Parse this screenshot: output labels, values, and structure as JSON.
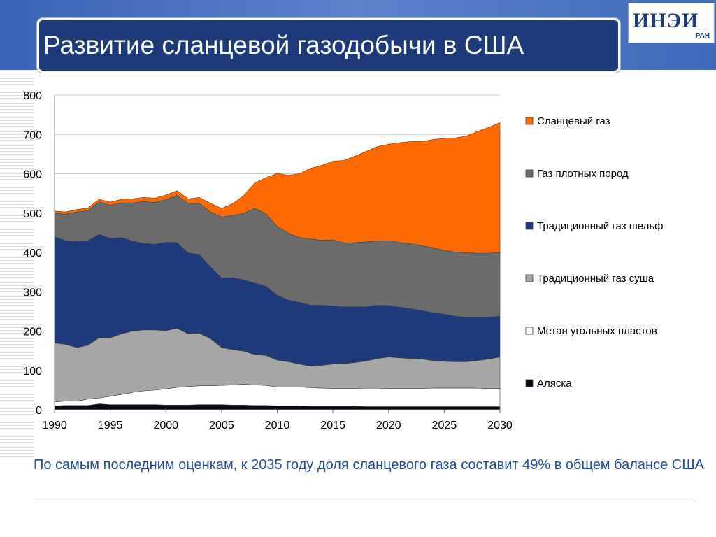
{
  "slide": {
    "title": "Развитие сланцевой газодобычи в США",
    "logo_text": "ИНЭИ",
    "logo_sub": "РАН",
    "caption": "По самым последним оценкам, к 2035 году доля сланцевого газа составит 49% в общем балансе США"
  },
  "colors": {
    "band": "#3a63b4",
    "title_bg": "#1f3a7a",
    "caption": "#1f4fa0"
  },
  "chart_data": {
    "type": "area",
    "stacked": true,
    "title": "",
    "xlabel": "",
    "ylabel": "",
    "xlim": [
      1990,
      2030
    ],
    "ylim": [
      0,
      800
    ],
    "x_ticks": [
      1990,
      1995,
      2000,
      2005,
      2010,
      2015,
      2020,
      2025,
      2030
    ],
    "y_ticks": [
      0,
      100,
      200,
      300,
      400,
      500,
      600,
      700,
      800
    ],
    "grid": "horizontal",
    "legend_position": "right",
    "x": [
      1990,
      1991,
      1992,
      1993,
      1994,
      1995,
      1996,
      1997,
      1998,
      1999,
      2000,
      2001,
      2002,
      2003,
      2004,
      2005,
      2006,
      2007,
      2008,
      2009,
      2010,
      2011,
      2012,
      2013,
      2014,
      2015,
      2016,
      2017,
      2018,
      2019,
      2020,
      2021,
      2022,
      2023,
      2024,
      2025,
      2026,
      2027,
      2028,
      2029,
      2030
    ],
    "series": [
      {
        "name": "Аляска",
        "color": "#0a0a14",
        "values": [
          10,
          11,
          11,
          11,
          15,
          13,
          13,
          13,
          13,
          13,
          12,
          12,
          12,
          13,
          13,
          13,
          12,
          12,
          11,
          11,
          10,
          10,
          10,
          9,
          9,
          9,
          9,
          9,
          8,
          8,
          8,
          8,
          8,
          8,
          8,
          8,
          8,
          8,
          8,
          8,
          8
        ]
      },
      {
        "name": "Метан угольных пластов",
        "color": "#ffffff",
        "values": [
          10,
          11,
          11,
          16,
          15,
          21,
          26,
          31,
          35,
          37,
          41,
          45,
          47,
          48,
          48,
          49,
          51,
          53,
          52,
          51,
          48,
          48,
          48,
          47,
          46,
          45,
          45,
          45,
          45,
          45,
          46,
          46,
          46,
          46,
          47,
          47,
          47,
          47,
          47,
          46,
          46
        ]
      },
      {
        "name": "Традиционный газ суша",
        "color": "#a6a6a6",
        "values": [
          150,
          144,
          136,
          137,
          153,
          149,
          154,
          156,
          155,
          153,
          148,
          150,
          134,
          134,
          120,
          96,
          90,
          84,
          77,
          76,
          68,
          64,
          58,
          55,
          58,
          62,
          63,
          66,
          71,
          77,
          80,
          78,
          76,
          75,
          70,
          68,
          67,
          67,
          70,
          75,
          80
        ]
      },
      {
        "name": "Традиционный газ шельф",
        "color": "#1f3a7a",
        "values": [
          270,
          264,
          270,
          266,
          263,
          253,
          245,
          229,
          220,
          218,
          225,
          218,
          206,
          200,
          182,
          177,
          183,
          181,
          182,
          176,
          165,
          157,
          157,
          155,
          153,
          148,
          145,
          142,
          138,
          136,
          131,
          129,
          127,
          123,
          122,
          120,
          116,
          113,
          110,
          106,
          104
        ]
      },
      {
        "name": "Газ плотных пород",
        "color": "#6b6b6b",
        "values": [
          60,
          67,
          75,
          76,
          82,
          84,
          88,
          97,
          106,
          106,
          108,
          120,
          125,
          130,
          140,
          155,
          158,
          170,
          190,
          184,
          175,
          170,
          165,
          168,
          165,
          168,
          162,
          163,
          165,
          163,
          165,
          164,
          165,
          165,
          165,
          162,
          163,
          164,
          163,
          163,
          162
        ]
      },
      {
        "name": "Сланцевый газ",
        "color": "#ff6a00",
        "values": [
          5,
          6,
          6,
          7,
          7,
          8,
          9,
          10,
          11,
          11,
          12,
          12,
          12,
          15,
          22,
          22,
          30,
          45,
          65,
          92,
          135,
          147,
          162,
          180,
          190,
          200,
          210,
          220,
          230,
          240,
          245,
          254,
          260,
          265,
          275,
          285,
          290,
          297,
          310,
          320,
          330
        ]
      }
    ]
  }
}
